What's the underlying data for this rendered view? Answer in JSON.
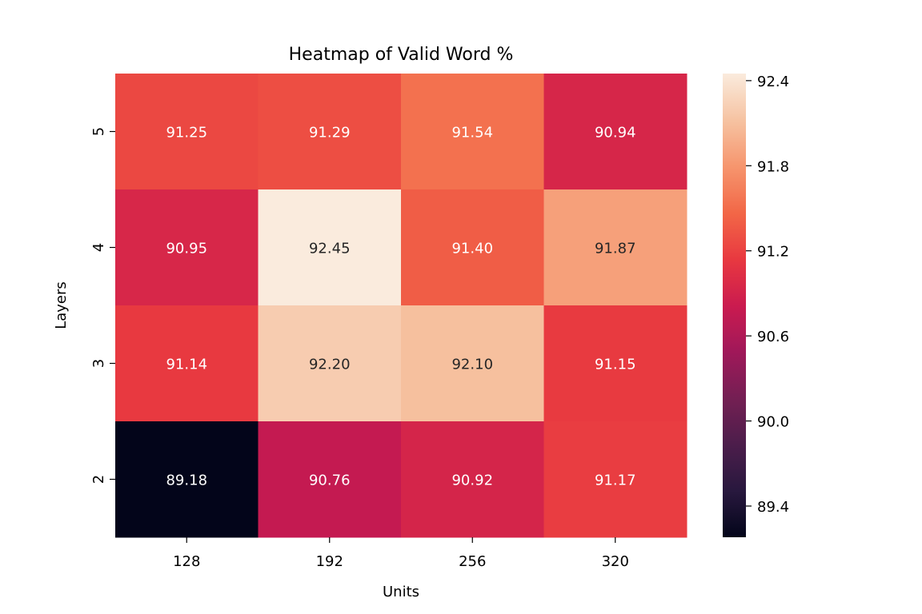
{
  "chart_data": {
    "type": "heatmap",
    "title": "Heatmap of Valid Word %",
    "xlabel": "Units",
    "ylabel": "Layers",
    "x_categories": [
      "128",
      "192",
      "256",
      "320"
    ],
    "y_categories": [
      "5",
      "4",
      "3",
      "2"
    ],
    "values": [
      [
        91.25,
        91.29,
        91.54,
        90.94
      ],
      [
        90.95,
        92.45,
        91.4,
        91.87
      ],
      [
        91.14,
        92.2,
        92.1,
        91.15
      ],
      [
        89.18,
        90.76,
        90.92,
        91.17
      ]
    ],
    "value_format": "2dp",
    "colorbar": {
      "vmin": 89.18,
      "vmax": 92.45,
      "ticks": [
        "89.4",
        "90.0",
        "90.6",
        "91.2",
        "91.8",
        "92.4"
      ],
      "colormap": "rocket"
    }
  }
}
